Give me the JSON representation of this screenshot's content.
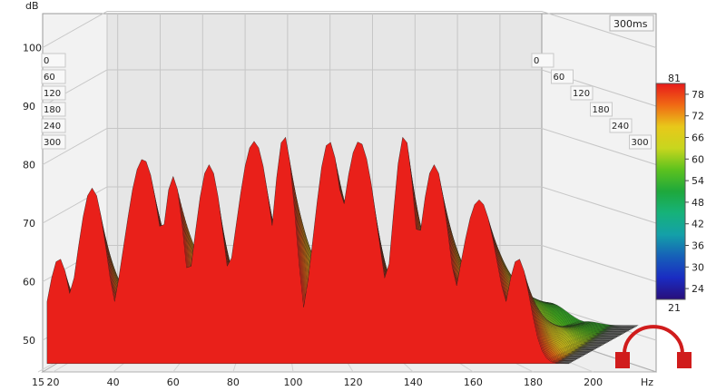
{
  "chart_data": {
    "type": "waterfall",
    "ylabel": "dB",
    "xlabel": "",
    "x_unit": "Hz",
    "time_window": "300ms",
    "x_ticks": [
      15,
      20,
      40,
      60,
      80,
      100,
      120,
      140,
      160,
      180,
      200
    ],
    "x_tick_labels": [
      "15",
      "20",
      "40",
      "60",
      "80",
      "100",
      "120",
      "140",
      "160",
      "180",
      "200"
    ],
    "y_ticks": [
      50,
      60,
      70,
      80,
      90,
      100
    ],
    "y_tick_labels": [
      "50",
      "60",
      "70",
      "80",
      "90",
      "100"
    ],
    "ylim": [
      45,
      105
    ],
    "xlim": [
      15,
      220
    ],
    "time_axis_ticks": [
      "0",
      "60",
      "120",
      "180",
      "240",
      "300"
    ],
    "time_axis_ticks_left": [
      "0",
      "60",
      "120",
      "180",
      "240",
      "300"
    ],
    "color_scale": {
      "min_label": "21",
      "max_label": "81",
      "ticks": [
        "78",
        "72",
        "66",
        "60",
        "54",
        "48",
        "42",
        "36",
        "30",
        "24"
      ],
      "tick_values": [
        78,
        72,
        66,
        60,
        54,
        48,
        42,
        36,
        30,
        24
      ],
      "range": [
        21,
        81
      ]
    },
    "slices": {
      "count": 60,
      "time_ms_start": 0,
      "time_ms_end": 300
    },
    "front_peaks": [
      {
        "freq": 22,
        "db": 64
      },
      {
        "freq": 33,
        "db": 76
      },
      {
        "freq": 50,
        "db": 81
      },
      {
        "freq": 60,
        "db": 78
      },
      {
        "freq": 72,
        "db": 80
      },
      {
        "freq": 87,
        "db": 84
      },
      {
        "freq": 97,
        "db": 85
      },
      {
        "freq": 112,
        "db": 84
      },
      {
        "freq": 122,
        "db": 84
      },
      {
        "freq": 137,
        "db": 85
      },
      {
        "freq": 147,
        "db": 80
      },
      {
        "freq": 162,
        "db": 74
      },
      {
        "freq": 175,
        "db": 64
      }
    ],
    "grid": true,
    "legend": "right"
  },
  "colors": {
    "background": "#ffffff",
    "plot_background": "#e8e8e8",
    "grid": "#c6c6c6",
    "logo": "#d01c1c"
  }
}
